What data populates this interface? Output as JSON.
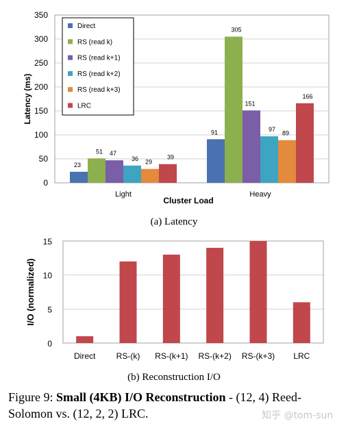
{
  "chart_data": [
    {
      "type": "bar",
      "categories": [
        "Light",
        "Heavy"
      ],
      "series": [
        {
          "name": "Direct",
          "color": "#4a72b0",
          "values": [
            23,
            91
          ]
        },
        {
          "name": "RS (read k)",
          "color": "#8db04e",
          "values": [
            51,
            305
          ]
        },
        {
          "name": "RS (read k+1)",
          "color": "#7a5ea8",
          "values": [
            47,
            151
          ]
        },
        {
          "name": "RS (read k+2)",
          "color": "#3ea4c2",
          "values": [
            36,
            97
          ]
        },
        {
          "name": "RS (read k+3)",
          "color": "#e48a3c",
          "values": [
            29,
            89
          ]
        },
        {
          "name": "LRC",
          "color": "#c0474b",
          "values": [
            39,
            166
          ]
        }
      ],
      "ylabel": "Latency (ms)",
      "xlabel": "Cluster Load",
      "ylim": [
        0,
        350
      ],
      "yticks": [
        0,
        50,
        100,
        150,
        200,
        250,
        300,
        350
      ],
      "legend": "top-left",
      "grid": true,
      "subtitle": "(a)  Latency"
    },
    {
      "type": "bar",
      "categories": [
        "Direct",
        "RS-(k)",
        "RS-(k+1)",
        "RS-(k+2)",
        "RS-(k+3)",
        "LRC"
      ],
      "values": [
        1,
        12,
        13,
        14,
        15,
        6
      ],
      "color": "#c0474b",
      "ylabel": "I/O (normalized)",
      "xlabel": "",
      "ylim": [
        0,
        15
      ],
      "yticks": [
        0,
        5,
        10,
        15
      ],
      "grid": true,
      "subtitle": "(b)  Reconstruction I/O"
    }
  ],
  "caption": {
    "prefix": "Figure 9:  ",
    "bold": "Small (4KB) I/O Reconstruction",
    "rest": " - (12, 4) Reed-Solomon vs. (12, 2, 2) LRC."
  },
  "watermark": "知乎 @tom-sun"
}
